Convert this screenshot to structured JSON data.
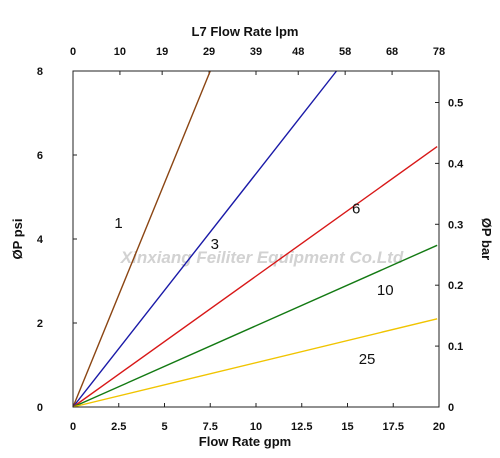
{
  "chart_data": {
    "type": "line",
    "watermark": "Xinxiang Feiliter Equipment Co.Ltd",
    "xlabel": "Flow Rate gpm",
    "x_top_label": "L7 Flow Rate lpm",
    "ylabel": "ØP psi",
    "y_right_label": "ØP bar",
    "xlim": [
      0,
      20
    ],
    "ylim": [
      0,
      8
    ],
    "y_right_lim": [
      0,
      0.5517
    ],
    "x_ticks": [
      0,
      2.5,
      5,
      7.5,
      10,
      12.5,
      15,
      17.5,
      20
    ],
    "x_tick_labels": [
      "0",
      "2.5",
      "5",
      "7.5",
      "10",
      "12.5",
      "15",
      "17.5",
      "20"
    ],
    "x_top_ticks": [
      0,
      10,
      19,
      29,
      39,
      48,
      58,
      68,
      78
    ],
    "y_ticks": [
      0,
      2,
      4,
      6,
      8
    ],
    "y_right_ticks": [
      0,
      0.1,
      0.2,
      0.3,
      0.4,
      0.5
    ],
    "series": [
      {
        "name": "1",
        "color": "#8B4513",
        "x": [
          0,
          7.5
        ],
        "y": [
          0,
          8.0
        ]
      },
      {
        "name": "3",
        "color": "#1a1aa8",
        "x": [
          0,
          14.4
        ],
        "y": [
          0,
          8.0
        ]
      },
      {
        "name": "6",
        "color": "#d81818",
        "x": [
          0,
          19.9
        ],
        "y": [
          0,
          6.2
        ]
      },
      {
        "name": "10",
        "color": "#137a13",
        "x": [
          0,
          19.9
        ],
        "y": [
          0,
          3.85
        ]
      },
      {
        "name": "25",
        "color": "#f0c400",
        "x": [
          0,
          19.9
        ],
        "y": [
          0,
          2.1
        ]
      }
    ]
  }
}
